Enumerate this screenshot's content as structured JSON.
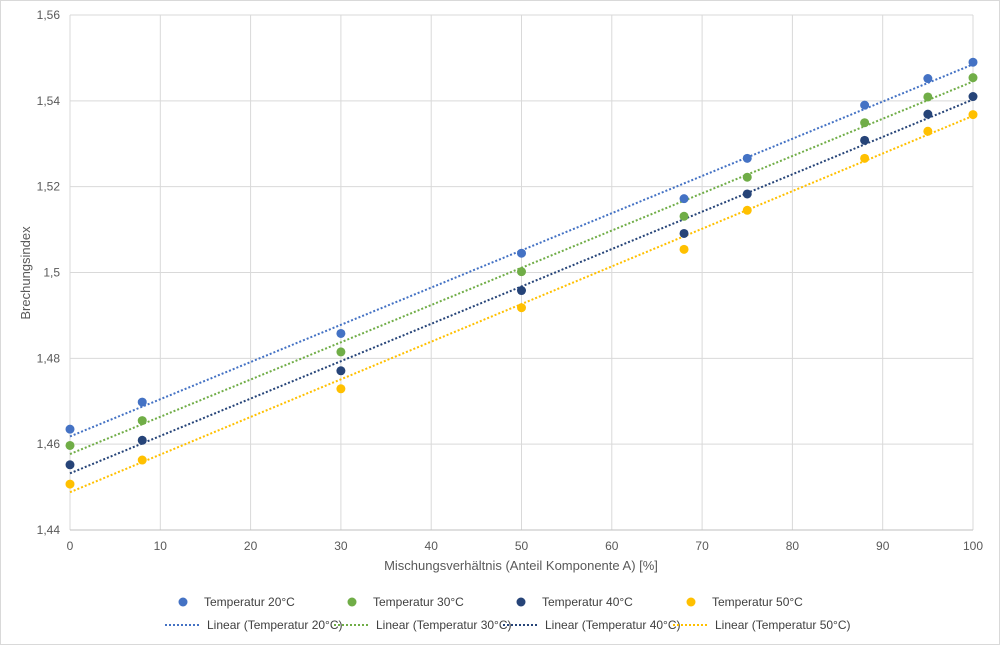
{
  "chart_data": {
    "type": "scatter",
    "xlabel": "Mischungsverhältnis (Anteil Komponente A) [%]",
    "ylabel": "Brechungsindex",
    "xlim": [
      0,
      100
    ],
    "ylim": [
      1.44,
      1.56
    ],
    "xticks": [
      0,
      10,
      20,
      30,
      40,
      50,
      60,
      70,
      80,
      90,
      100
    ],
    "yticks": [
      1.44,
      1.46,
      1.48,
      1.5,
      1.52,
      1.54,
      1.56
    ],
    "x_tick_labels": [
      "0",
      "10",
      "20",
      "30",
      "40",
      "50",
      "60",
      "70",
      "80",
      "90",
      "100"
    ],
    "y_tick_labels": [
      "1,44",
      "1,46",
      "1,48",
      "1,5",
      "1,52",
      "1,54",
      "1,56"
    ],
    "grid": true,
    "legend_position": "bottom",
    "x": [
      0,
      8,
      30,
      50,
      68,
      75,
      88,
      95,
      100
    ],
    "series": [
      {
        "name": "Temperatur 20°C",
        "color": "#4472c4",
        "values": [
          1.4635,
          1.4698,
          1.4858,
          1.5045,
          1.5172,
          1.5266,
          1.539,
          1.5452,
          1.549
        ]
      },
      {
        "name": "Temperatur 30°C",
        "color": "#70ad47",
        "values": [
          1.4597,
          1.4655,
          1.4815,
          1.5002,
          1.5131,
          1.5222,
          1.5349,
          1.5409,
          1.5454
        ]
      },
      {
        "name": "Temperatur 40°C",
        "color": "#264478",
        "values": [
          1.4552,
          1.4609,
          1.4771,
          1.4958,
          1.5091,
          1.5183,
          1.5308,
          1.5369,
          1.541
        ]
      },
      {
        "name": "Temperatur 50°C",
        "color": "#ffc000",
        "values": [
          1.4507,
          1.4563,
          1.4729,
          1.4918,
          1.5054,
          1.5145,
          1.5266,
          1.5329,
          1.5368
        ]
      }
    ],
    "trendlines": [
      {
        "name": "Linear (Temperatur 20°C)",
        "color": "#4472c4",
        "y_at_0": 1.4618,
        "y_at_100": 1.5485
      },
      {
        "name": "Linear (Temperatur 30°C)",
        "color": "#70ad47",
        "y_at_0": 1.4577,
        "y_at_100": 1.5445
      },
      {
        "name": "Linear (Temperatur 40°C)",
        "color": "#264478",
        "y_at_0": 1.4532,
        "y_at_100": 1.5403
      },
      {
        "name": "Linear (Temperatur 50°C)",
        "color": "#ffc000",
        "y_at_0": 1.4488,
        "y_at_100": 1.5365
      }
    ]
  }
}
